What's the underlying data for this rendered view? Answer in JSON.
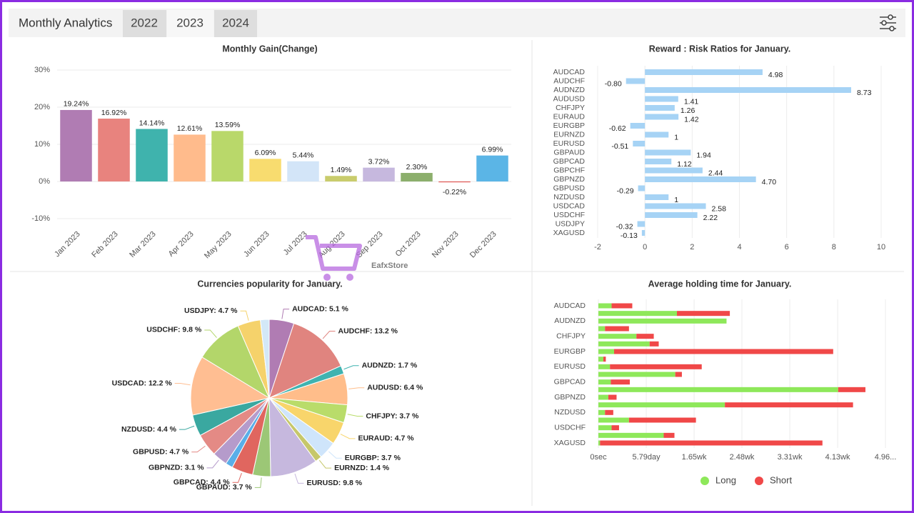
{
  "header": {
    "title": "Monthly Analytics",
    "tabs": [
      "2022",
      "2023",
      "2024"
    ]
  },
  "watermark": "EafxStore",
  "chart_data": [
    {
      "type": "bar",
      "title": "Monthly Gain(Change)",
      "categories": [
        "Jan 2023",
        "Feb 2023",
        "Mar 2023",
        "Apr 2023",
        "May 2023",
        "Jun 2023",
        "Jul 2023",
        "Aug 2023",
        "Sep 2023",
        "Oct 2023",
        "Nov 2023",
        "Dec 2023"
      ],
      "values": [
        19.24,
        16.92,
        14.14,
        12.61,
        13.59,
        6.09,
        5.44,
        1.49,
        3.72,
        2.3,
        -0.22,
        6.99
      ],
      "value_labels": [
        "19.24%",
        "16.92%",
        "14.14%",
        "12.61%",
        "13.59%",
        "6.09%",
        "5.44%",
        "1.49%",
        "3.72%",
        "2.30%",
        "-0.22%",
        "6.99%"
      ],
      "colors": [
        "#b07cb3",
        "#e8837e",
        "#3fb3ad",
        "#ffbb8c",
        "#b9d86a",
        "#f8dc6f",
        "#d3e5f8",
        "#c9cc6c",
        "#c6b8de",
        "#8caf6c",
        "#e2534f",
        "#5bb5e6"
      ],
      "ylim": [
        -10,
        30
      ],
      "yticks": [
        {
          "value": -10,
          "label": "-10%"
        },
        {
          "value": 0,
          "label": "0%"
        },
        {
          "value": 10,
          "label": "10%"
        },
        {
          "value": 20,
          "label": "20%"
        },
        {
          "value": 30,
          "label": "30%"
        }
      ],
      "grid": true
    },
    {
      "type": "bar",
      "horizontal": true,
      "title": "Reward : Risk Ratios for January.",
      "categories": [
        "AUDCAD",
        "AUDCHF",
        "AUDNZD",
        "AUDUSD",
        "CHFJPY",
        "EURAUD",
        "EURGBP",
        "EURNZD",
        "EURUSD",
        "GBPAUD",
        "GBPCAD",
        "GBPCHF",
        "GBPNZD",
        "GBPUSD",
        "NZDUSD",
        "USDCAD",
        "USDCHF",
        "USDJPY",
        "XAGUSD"
      ],
      "values": [
        4.98,
        -0.8,
        8.73,
        1.41,
        1.26,
        1.42,
        -0.62,
        1,
        -0.51,
        1.94,
        1.12,
        2.44,
        4.7,
        -0.29,
        1,
        2.58,
        2.22,
        -0.32,
        -0.13
      ],
      "value_labels": [
        "4.98",
        "-0.80",
        "8.73",
        "1.41",
        "1.26",
        "1.42",
        "-0.62",
        "1",
        "-0.51",
        "1.94",
        "1.12",
        "2.44",
        "4.70",
        "-0.29",
        "1",
        "2.58",
        "2.22",
        "-0.32",
        "-0.13"
      ],
      "color": "#a6d3f5",
      "xlim": [
        -2,
        10
      ],
      "xticks": [
        -2,
        0,
        2,
        4,
        6,
        8,
        10
      ],
      "grid": true
    },
    {
      "type": "pie",
      "title": "Currencies popularity for January.",
      "labels": [
        "AUDCAD: 5.1 %",
        "AUDCHF: 13.2 %",
        "AUDNZD: 1.7 %",
        "AUDUSD: 6.4 %",
        "CHFJPY: 3.7 %",
        "EURAUD: 4.7 %",
        "EURGBP: 3.7 %",
        "EURNZD: 1.4 %",
        "EURUSD: 9.8 %",
        "GBPAUD: 3.7 %",
        "GBPCAD: 4.4 %",
        null,
        "GBPNZD: 3.1 %",
        "GBPUSD: 4.7 %",
        "NZDUSD: 4.4 %",
        "USDCAD: 12.2 %",
        "USDCHF: 9.8 %",
        "USDJPY: 4.7 %",
        null
      ],
      "values": [
        5.1,
        13.2,
        1.7,
        6.4,
        3.7,
        4.7,
        3.7,
        1.4,
        9.8,
        3.7,
        4.4,
        1.5,
        3.1,
        4.7,
        4.4,
        12.2,
        9.8,
        4.7,
        1.8
      ],
      "colors": [
        "#b07cb3",
        "#e0847f",
        "#3fb3b0",
        "#ffbd8a",
        "#b9dc6a",
        "#f8d56b",
        "#cfe5fb",
        "#c6c76b",
        "#c6b8de",
        "#9cc776",
        "#e0665f",
        "#5aaee8",
        "#b59bcb",
        "#e48a85",
        "#3aa8a0",
        "#ffbe92",
        "#b3d66a",
        "#f5d26b",
        "#d3e8f7"
      ]
    },
    {
      "type": "bar",
      "horizontal": true,
      "stacked": true,
      "title": "Average holding time for January.",
      "categories": [
        "AUDCAD",
        null,
        "AUDNZD",
        null,
        "CHFJPY",
        null,
        "EURGBP",
        null,
        "EURUSD",
        null,
        "GBPCAD",
        null,
        "GBPNZD",
        null,
        "NZDUSD",
        null,
        "USDCHF",
        null,
        "XAGUSD"
      ],
      "series": [
        {
          "name": "Long",
          "color": "#8ee85a",
          "values": [
            1.6,
            9.5,
            15.5,
            0.8,
            4.6,
            6.2,
            1.9,
            0.6,
            1.4,
            9.3,
            1.5,
            29.0,
            1.2,
            15.3,
            0.8,
            3.7,
            1.6,
            7.9,
            0.2
          ]
        },
        {
          "name": "Short",
          "color": "#f04848",
          "values": [
            2.5,
            6.4,
            0,
            2.9,
            2.1,
            1.1,
            26.5,
            0.3,
            11.1,
            0.8,
            2.3,
            3.3,
            1.0,
            15.5,
            1.0,
            8.1,
            0.9,
            1.3,
            26.9
          ]
        }
      ],
      "xlim": [
        0,
        34.72
      ],
      "xticks": [
        {
          "value": 0,
          "label": "0sec"
        },
        {
          "value": 5.79,
          "label": "5.79day"
        },
        {
          "value": 11.58,
          "label": "1.65wk"
        },
        {
          "value": 17.36,
          "label": "2.48wk"
        },
        {
          "value": 23.15,
          "label": "3.31wk"
        },
        {
          "value": 28.94,
          "label": "4.13wk"
        },
        {
          "value": 34.72,
          "label": "4.96..."
        }
      ],
      "grid": true
    }
  ]
}
